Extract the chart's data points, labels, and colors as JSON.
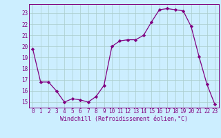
{
  "x": [
    0,
    1,
    2,
    3,
    4,
    5,
    6,
    7,
    8,
    9,
    10,
    11,
    12,
    13,
    14,
    15,
    16,
    17,
    18,
    19,
    20,
    21,
    22,
    23
  ],
  "y": [
    19.8,
    16.8,
    16.8,
    16.0,
    15.0,
    15.3,
    15.2,
    15.0,
    15.5,
    16.5,
    20.0,
    20.5,
    20.6,
    20.6,
    21.0,
    22.2,
    23.3,
    23.4,
    23.3,
    23.2,
    21.8,
    19.1,
    16.6,
    14.8
  ],
  "line_color": "#800080",
  "marker": "D",
  "marker_size": 2.2,
  "bg_color": "#cceeff",
  "grid_color": "#aacccc",
  "ylabel_ticks": [
    15,
    16,
    17,
    18,
    19,
    20,
    21,
    22,
    23
  ],
  "xlabel": "Windchill (Refroidissement éolien,°C)",
  "xlim": [
    -0.5,
    23.5
  ],
  "ylim": [
    14.5,
    23.8
  ],
  "tick_fontsize": 5.5,
  "xlabel_fontsize": 6.0
}
